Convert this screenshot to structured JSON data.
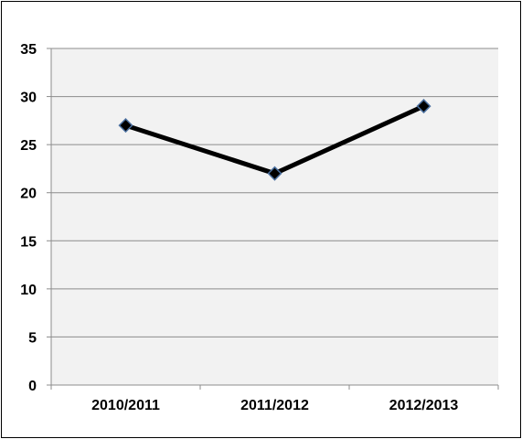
{
  "chart_data": {
    "type": "line",
    "categories": [
      "2010/2011",
      "2011/2012",
      "2012/2013"
    ],
    "series": [
      {
        "values": [
          27,
          22,
          29
        ]
      }
    ],
    "title": "",
    "xlabel": "",
    "ylabel": "",
    "ylim": [
      0,
      35
    ],
    "yticks": [
      0,
      5,
      10,
      15,
      20,
      25,
      30,
      35
    ],
    "grid": true,
    "plot_background": "#f2f2f2",
    "line_color": "#000000",
    "marker": "diamond",
    "marker_fill": "#000000",
    "marker_edge": "#4a6f9f"
  }
}
